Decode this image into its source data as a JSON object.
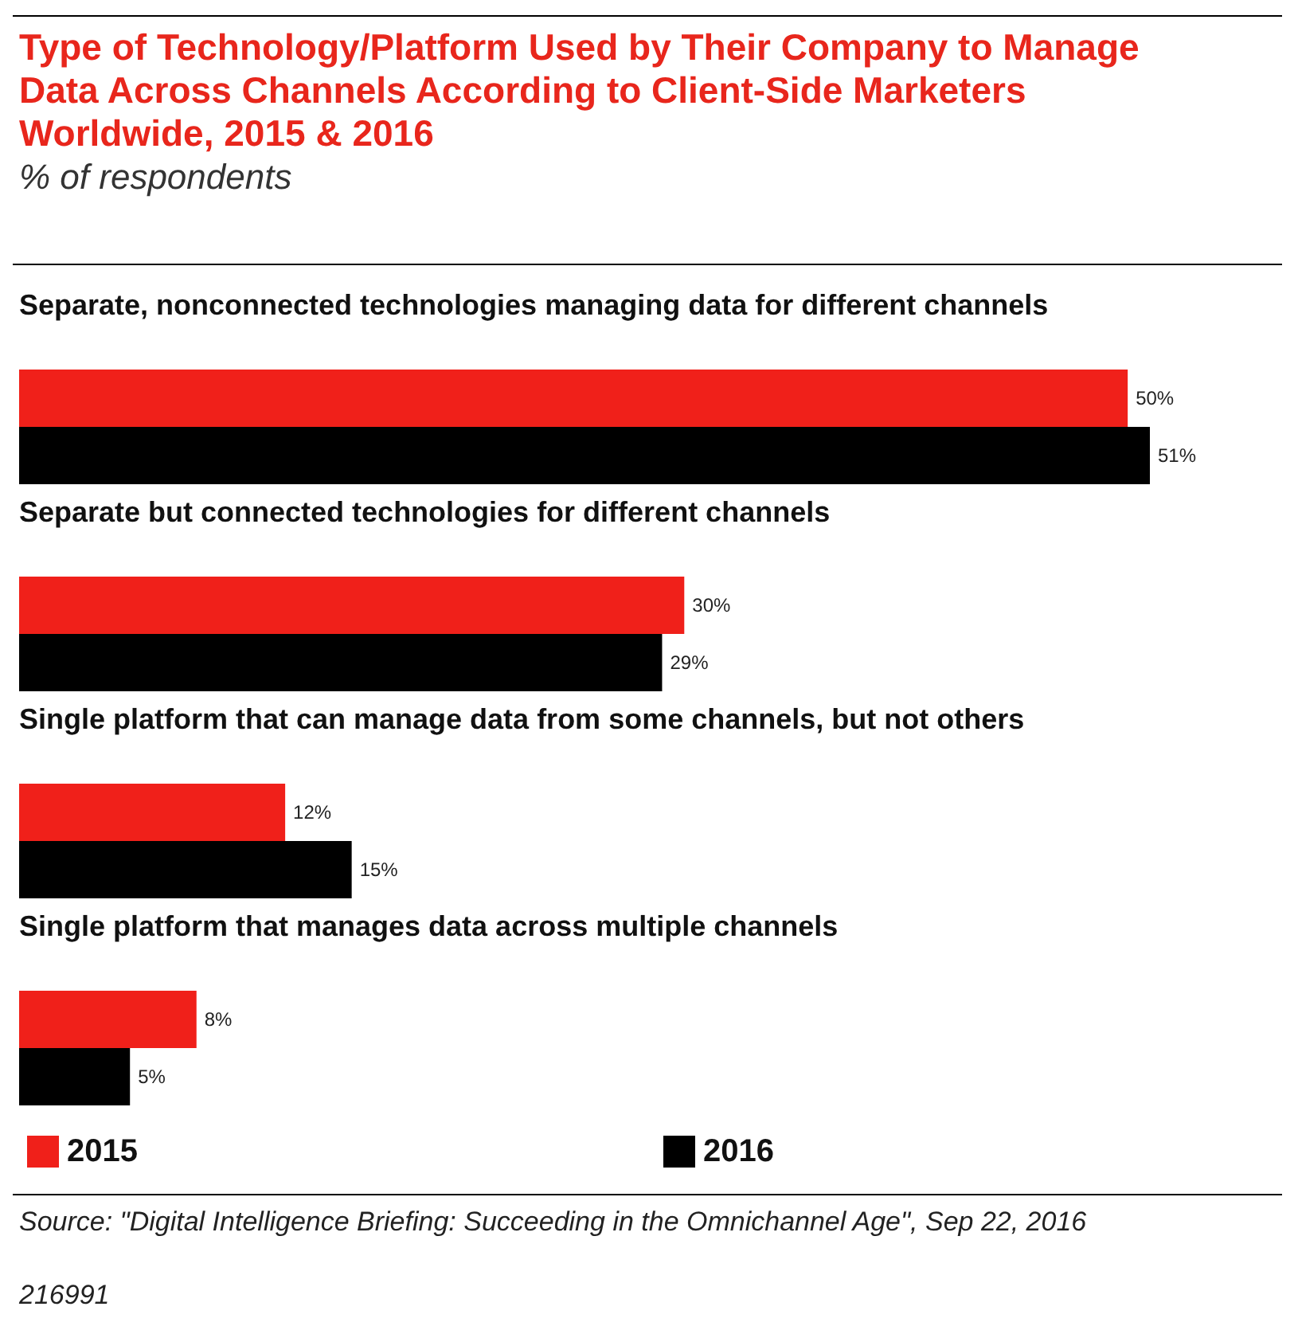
{
  "chart_data": {
    "type": "bar",
    "orientation": "horizontal",
    "title": "Type of Technology/Platform Used by Their Company to Manage Data Across Channels According to Client-Side Marketers Worldwide, 2015 & 2016",
    "subtitle": "% of respondents",
    "categories": [
      "Separate, nonconnected technologies managing data for different channels",
      "Separate but connected technologies for different channels",
      "Single platform that can manage data from some channels, but not others",
      "Single platform that manages data across multiple channels"
    ],
    "series": [
      {
        "name": "2015",
        "color": "#f0201a",
        "values": [
          50,
          30,
          12,
          8
        ],
        "value_labels": [
          "50%",
          "30%",
          "12%",
          "8%"
        ]
      },
      {
        "name": "2016",
        "color": "#000000",
        "values": [
          51,
          29,
          15,
          5
        ],
        "value_labels": [
          "51%",
          "29%",
          "15%",
          "5%"
        ]
      }
    ],
    "legend": "bottom",
    "annotations": [
      "Source: \"Digital Intelligence Briefing: Succeeding in the Omnichannel Age\", Sep 22, 2016",
      "216991"
    ]
  }
}
